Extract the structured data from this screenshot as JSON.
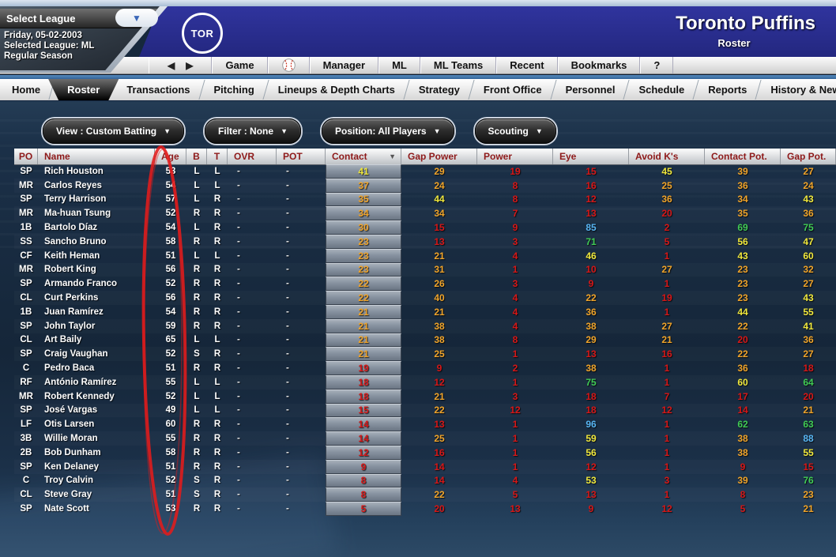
{
  "league_panel": {
    "select_label": "Select League",
    "date": "Friday, 05-02-2003",
    "selected_league": "Selected League: ML",
    "season": "Regular Season"
  },
  "logo": {
    "text": "TOR"
  },
  "header": {
    "team": "Toronto Puffins",
    "subtitle": "Roster"
  },
  "nav": {
    "back_arrow": "◀",
    "forward_arrow": "▶",
    "items_before_icon": [
      "Game"
    ],
    "items_after_icon": [
      "Manager",
      "ML",
      "ML Teams",
      "Recent",
      "Bookmarks",
      "?"
    ]
  },
  "tabs": {
    "items": [
      {
        "label": "Home",
        "active": false
      },
      {
        "label": "Roster",
        "active": true
      },
      {
        "label": "Transactions",
        "active": false
      },
      {
        "label": "Pitching",
        "active": false
      },
      {
        "label": "Lineups & Depth Charts",
        "active": false
      },
      {
        "label": "Strategy",
        "active": false
      },
      {
        "label": "Front Office",
        "active": false
      },
      {
        "label": "Personnel",
        "active": false
      },
      {
        "label": "Schedule",
        "active": false
      },
      {
        "label": "Reports",
        "active": false
      },
      {
        "label": "History & News",
        "active": false
      }
    ]
  },
  "filters": {
    "buttons": [
      "View : Custom Batting",
      "Filter : None",
      "Position: All Players",
      "Scouting"
    ],
    "caret": "▼"
  },
  "table": {
    "columns": [
      "PO",
      "Name",
      "Age",
      "B",
      "T",
      "OVR",
      "POT",
      "Contact",
      "Gap Power",
      "Power",
      "Eye",
      "Avoid K's",
      "Contact Pot.",
      "Gap Pot."
    ],
    "sort": {
      "column": "Contact",
      "direction": "desc",
      "indicator": "▼"
    },
    "players": [
      {
        "po": "SP",
        "name": "Rich Houston",
        "age": 53,
        "b": "L",
        "t": "L",
        "ovr": "-",
        "pot": "-",
        "contact": 41,
        "gap_power": 29,
        "power": 19,
        "eye": 15,
        "avoid_ks": 45,
        "contact_pot": 39,
        "gap_pot": 27
      },
      {
        "po": "MR",
        "name": "Carlos Reyes",
        "age": 54,
        "b": "L",
        "t": "L",
        "ovr": "-",
        "pot": "-",
        "contact": 37,
        "gap_power": 24,
        "power": 8,
        "eye": 16,
        "avoid_ks": 25,
        "contact_pot": 36,
        "gap_pot": 24
      },
      {
        "po": "SP",
        "name": "Terry Harrison",
        "age": 57,
        "b": "L",
        "t": "R",
        "ovr": "-",
        "pot": "-",
        "contact": 35,
        "gap_power": 44,
        "power": 8,
        "eye": 12,
        "avoid_ks": 36,
        "contact_pot": 34,
        "gap_pot": 43
      },
      {
        "po": "MR",
        "name": "Ma-huan Tsung",
        "age": 52,
        "b": "R",
        "t": "R",
        "ovr": "-",
        "pot": "-",
        "contact": 34,
        "gap_power": 34,
        "power": 7,
        "eye": 13,
        "avoid_ks": 20,
        "contact_pot": 35,
        "gap_pot": 36
      },
      {
        "po": "1B",
        "name": "Bartolo Díaz",
        "age": 54,
        "b": "L",
        "t": "R",
        "ovr": "-",
        "pot": "-",
        "contact": 30,
        "gap_power": 15,
        "power": 9,
        "eye": 85,
        "avoid_ks": 2,
        "contact_pot": 69,
        "gap_pot": 75
      },
      {
        "po": "SS",
        "name": "Sancho Bruno",
        "age": 58,
        "b": "R",
        "t": "R",
        "ovr": "-",
        "pot": "-",
        "contact": 23,
        "gap_power": 13,
        "power": 3,
        "eye": 71,
        "avoid_ks": 5,
        "contact_pot": 56,
        "gap_pot": 47
      },
      {
        "po": "CF",
        "name": "Keith Heman",
        "age": 51,
        "b": "L",
        "t": "L",
        "ovr": "-",
        "pot": "-",
        "contact": 23,
        "gap_power": 21,
        "power": 4,
        "eye": 46,
        "avoid_ks": 1,
        "contact_pot": 43,
        "gap_pot": 60
      },
      {
        "po": "MR",
        "name": "Robert King",
        "age": 56,
        "b": "R",
        "t": "R",
        "ovr": "-",
        "pot": "-",
        "contact": 23,
        "gap_power": 31,
        "power": 1,
        "eye": 10,
        "avoid_ks": 27,
        "contact_pot": 23,
        "gap_pot": 32
      },
      {
        "po": "SP",
        "name": "Armando Franco",
        "age": 52,
        "b": "R",
        "t": "R",
        "ovr": "-",
        "pot": "-",
        "contact": 22,
        "gap_power": 26,
        "power": 3,
        "eye": 9,
        "avoid_ks": 1,
        "contact_pot": 23,
        "gap_pot": 27
      },
      {
        "po": "CL",
        "name": "Curt Perkins",
        "age": 56,
        "b": "R",
        "t": "R",
        "ovr": "-",
        "pot": "-",
        "contact": 22,
        "gap_power": 40,
        "power": 4,
        "eye": 22,
        "avoid_ks": 19,
        "contact_pot": 23,
        "gap_pot": 43
      },
      {
        "po": "1B",
        "name": "Juan Ramírez",
        "age": 54,
        "b": "R",
        "t": "R",
        "ovr": "-",
        "pot": "-",
        "contact": 21,
        "gap_power": 21,
        "power": 4,
        "eye": 36,
        "avoid_ks": 1,
        "contact_pot": 44,
        "gap_pot": 55
      },
      {
        "po": "SP",
        "name": "John Taylor",
        "age": 59,
        "b": "R",
        "t": "R",
        "ovr": "-",
        "pot": "-",
        "contact": 21,
        "gap_power": 38,
        "power": 4,
        "eye": 38,
        "avoid_ks": 27,
        "contact_pot": 22,
        "gap_pot": 41
      },
      {
        "po": "CL",
        "name": "Art Baily",
        "age": 65,
        "b": "L",
        "t": "L",
        "ovr": "-",
        "pot": "-",
        "contact": 21,
        "gap_power": 38,
        "power": 8,
        "eye": 29,
        "avoid_ks": 21,
        "contact_pot": 20,
        "gap_pot": 36
      },
      {
        "po": "SP",
        "name": "Craig Vaughan",
        "age": 52,
        "b": "S",
        "t": "R",
        "ovr": "-",
        "pot": "-",
        "contact": 21,
        "gap_power": 25,
        "power": 1,
        "eye": 13,
        "avoid_ks": 16,
        "contact_pot": 22,
        "gap_pot": 27
      },
      {
        "po": "C",
        "name": "Pedro Baca",
        "age": 51,
        "b": "R",
        "t": "R",
        "ovr": "-",
        "pot": "-",
        "contact": 19,
        "gap_power": 9,
        "power": 2,
        "eye": 38,
        "avoid_ks": 1,
        "contact_pot": 36,
        "gap_pot": 18
      },
      {
        "po": "RF",
        "name": "António Ramírez",
        "age": 55,
        "b": "L",
        "t": "L",
        "ovr": "-",
        "pot": "-",
        "contact": 18,
        "gap_power": 12,
        "power": 1,
        "eye": 75,
        "avoid_ks": 1,
        "contact_pot": 60,
        "gap_pot": 64
      },
      {
        "po": "MR",
        "name": "Robert Kennedy",
        "age": 52,
        "b": "L",
        "t": "L",
        "ovr": "-",
        "pot": "-",
        "contact": 18,
        "gap_power": 21,
        "power": 3,
        "eye": 18,
        "avoid_ks": 7,
        "contact_pot": 17,
        "gap_pot": 20
      },
      {
        "po": "SP",
        "name": "José Vargas",
        "age": 49,
        "b": "L",
        "t": "L",
        "ovr": "-",
        "pot": "-",
        "contact": 15,
        "gap_power": 22,
        "power": 12,
        "eye": 18,
        "avoid_ks": 12,
        "contact_pot": 14,
        "gap_pot": 21
      },
      {
        "po": "LF",
        "name": "Otis Larsen",
        "age": 60,
        "b": "R",
        "t": "R",
        "ovr": "-",
        "pot": "-",
        "contact": 14,
        "gap_power": 13,
        "power": 1,
        "eye": 96,
        "avoid_ks": 1,
        "contact_pot": 62,
        "gap_pot": 63
      },
      {
        "po": "3B",
        "name": "Willie Moran",
        "age": 55,
        "b": "R",
        "t": "R",
        "ovr": "-",
        "pot": "-",
        "contact": 14,
        "gap_power": 25,
        "power": 1,
        "eye": 59,
        "avoid_ks": 1,
        "contact_pot": 38,
        "gap_pot": 88
      },
      {
        "po": "2B",
        "name": "Bob Dunham",
        "age": 58,
        "b": "R",
        "t": "R",
        "ovr": "-",
        "pot": "-",
        "contact": 12,
        "gap_power": 16,
        "power": 1,
        "eye": 56,
        "avoid_ks": 1,
        "contact_pot": 38,
        "gap_pot": 55
      },
      {
        "po": "SP",
        "name": "Ken Delaney",
        "age": 51,
        "b": "R",
        "t": "R",
        "ovr": "-",
        "pot": "-",
        "contact": 9,
        "gap_power": 14,
        "power": 1,
        "eye": 12,
        "avoid_ks": 1,
        "contact_pot": 9,
        "gap_pot": 15
      },
      {
        "po": "C",
        "name": "Troy Calvin",
        "age": 52,
        "b": "S",
        "t": "R",
        "ovr": "-",
        "pot": "-",
        "contact": 8,
        "gap_power": 14,
        "power": 4,
        "eye": 53,
        "avoid_ks": 3,
        "contact_pot": 39,
        "gap_pot": 76
      },
      {
        "po": "CL",
        "name": "Steve Gray",
        "age": 51,
        "b": "S",
        "t": "R",
        "ovr": "-",
        "pot": "-",
        "contact": 8,
        "gap_power": 22,
        "power": 5,
        "eye": 13,
        "avoid_ks": 1,
        "contact_pot": 8,
        "gap_pot": 23
      },
      {
        "po": "SP",
        "name": "Nate Scott",
        "age": 53,
        "b": "R",
        "t": "R",
        "ovr": "-",
        "pot": "-",
        "contact": 5,
        "gap_power": 20,
        "power": 13,
        "eye": 9,
        "avoid_ks": 12,
        "contact_pot": 5,
        "gap_pot": 21
      }
    ]
  },
  "rating_scale": [
    {
      "max": 20,
      "color": "#d71717"
    },
    {
      "max": 40,
      "color": "#f0a42a"
    },
    {
      "max": 60,
      "color": "#f0e83c"
    },
    {
      "max": 80,
      "color": "#41cb55"
    },
    {
      "max": 100,
      "color": "#58b6f4"
    }
  ],
  "colors": {
    "header_blue": "#272b93",
    "table_header_text": "#8e1a1a",
    "annotation_red": "#e31b1b"
  },
  "annotation": {
    "shape": "ellipse",
    "target": "Age column",
    "color": "#e31b1b"
  }
}
